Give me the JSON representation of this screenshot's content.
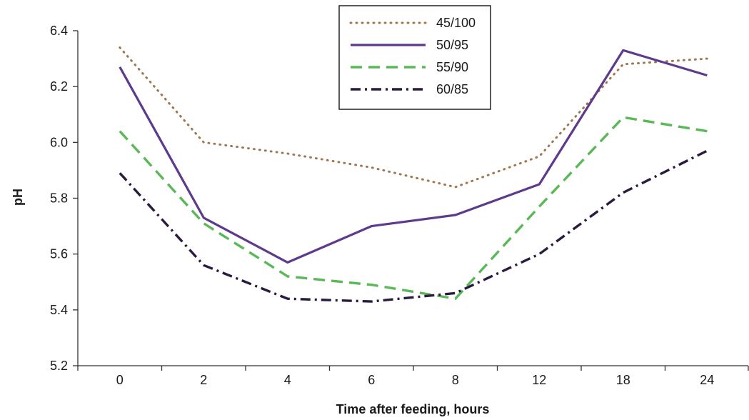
{
  "chart_data": {
    "type": "line",
    "title": "",
    "xlabel": "Time after feeding, hours",
    "ylabel": "pH",
    "categories": [
      "0",
      "2",
      "4",
      "6",
      "8",
      "12",
      "18",
      "24"
    ],
    "yticks": [
      "5.2",
      "5.4",
      "5.6",
      "5.8",
      "6.0",
      "6.2",
      "6.4"
    ],
    "ylim": [
      5.2,
      6.4
    ],
    "grid": false,
    "legend_position": "top-center",
    "series": [
      {
        "name": "45/100",
        "values": [
          6.34,
          6.0,
          5.96,
          5.91,
          5.84,
          5.95,
          6.28,
          6.3
        ],
        "color": "#a0764e",
        "style": "dotted"
      },
      {
        "name": "50/95",
        "values": [
          6.27,
          5.73,
          5.57,
          5.7,
          5.74,
          5.85,
          6.33,
          6.24
        ],
        "color": "#5e3a8c",
        "style": "solid"
      },
      {
        "name": "55/90",
        "values": [
          6.04,
          5.71,
          5.52,
          5.49,
          5.44,
          5.77,
          6.09,
          6.04
        ],
        "color": "#5ab859",
        "style": "dashed"
      },
      {
        "name": "60/85",
        "values": [
          5.89,
          5.56,
          5.44,
          5.43,
          5.46,
          5.6,
          5.82,
          5.97
        ],
        "color": "#2a1a3e",
        "style": "dashdot"
      }
    ]
  }
}
